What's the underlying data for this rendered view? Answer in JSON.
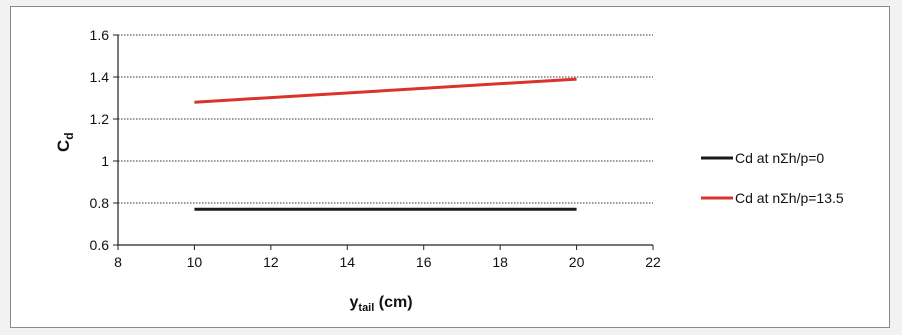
{
  "chart_data": {
    "type": "line",
    "title": "",
    "xlabel": {
      "main": "y",
      "sub": "tail",
      "unit": " (cm)"
    },
    "ylabel": {
      "main": "C",
      "sub": "d"
    },
    "xlim": [
      8,
      22
    ],
    "ylim": [
      0.6,
      1.6
    ],
    "x_ticks": [
      8,
      10,
      12,
      14,
      16,
      18,
      20,
      22
    ],
    "y_ticks": [
      0.6,
      0.8,
      1.0,
      1.2,
      1.4,
      1.6
    ],
    "x_tick_labels": [
      "8",
      "10",
      "12",
      "14",
      "16",
      "18",
      "20",
      "22"
    ],
    "y_tick_labels": [
      "0.6",
      "0.8",
      "1",
      "1.2",
      "1.4",
      "1.6"
    ],
    "grid": "horizontal dotted",
    "legend_position": "right",
    "series": [
      {
        "name": "Cd at nΣh/p=0",
        "color": "#1a1a1a",
        "x": [
          10,
          20
        ],
        "y": [
          0.77,
          0.77
        ]
      },
      {
        "name": "Cd at nΣh/p=13.5",
        "color": "#d9342b",
        "x": [
          10,
          20
        ],
        "y": [
          1.28,
          1.39
        ]
      }
    ]
  }
}
